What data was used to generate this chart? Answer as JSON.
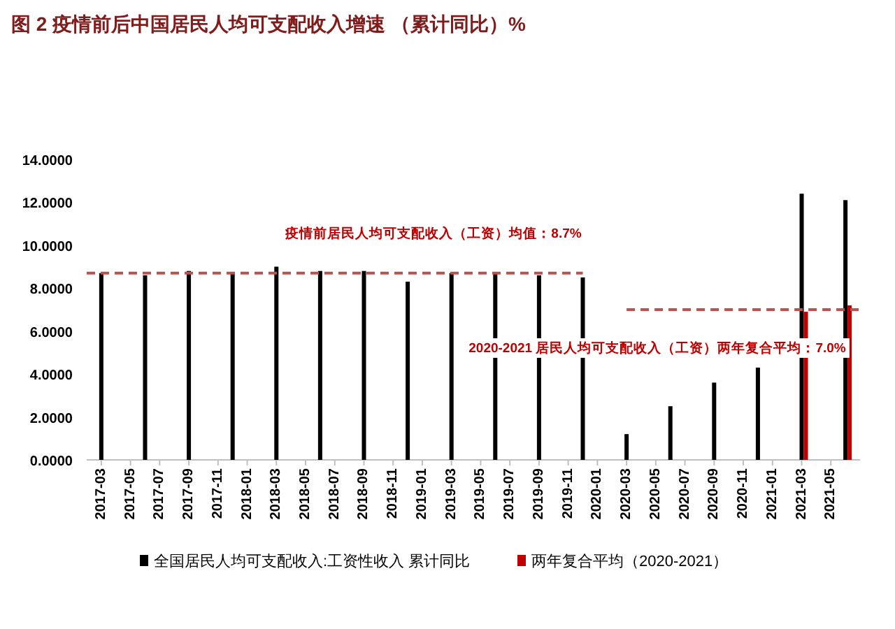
{
  "chart_data": {
    "type": "bar",
    "title": "图 2 疫情前后中国居民人均可支配收入增速 （累计同比）%",
    "xlim": [
      "2017-02",
      "2021-07"
    ],
    "xticks": [
      "2017-03",
      "2017-05",
      "2017-07",
      "2017-09",
      "2017-11",
      "2018-01",
      "2018-03",
      "2018-05",
      "2018-07",
      "2018-09",
      "2018-11",
      "2019-01",
      "2019-03",
      "2019-05",
      "2019-07",
      "2019-09",
      "2019-11",
      "2020-01",
      "2020-03",
      "2020-05",
      "2020-07",
      "2020-09",
      "2020-11",
      "2021-01",
      "2021-03",
      "2021-05"
    ],
    "ylim": [
      0,
      14
    ],
    "yticks": [
      {
        "value": 0,
        "label": "0.0000"
      },
      {
        "value": 2,
        "label": "2.0000"
      },
      {
        "value": 4,
        "label": "4.0000"
      },
      {
        "value": 6,
        "label": "6.0000"
      },
      {
        "value": 8,
        "label": "8.0000"
      },
      {
        "value": 10,
        "label": "10.0000"
      },
      {
        "value": 12,
        "label": "12.0000"
      },
      {
        "value": 14,
        "label": "14.0000"
      }
    ],
    "legend": "bottom",
    "series": [
      {
        "type": "bar",
        "name": "全国居民人均可支配收入:工资性收入 累计同比",
        "color": "#000000",
        "x": [
          "2017-03",
          "2017-06",
          "2017-09",
          "2017-12",
          "2018-03",
          "2018-06",
          "2018-09",
          "2018-12",
          "2019-03",
          "2019-06",
          "2019-09",
          "2019-12",
          "2020-03",
          "2020-06",
          "2020-09",
          "2020-12",
          "2021-03",
          "2021-06"
        ],
        "values": [
          8.7,
          8.6,
          8.8,
          8.7,
          9.0,
          8.8,
          8.8,
          8.3,
          8.7,
          8.7,
          8.6,
          8.5,
          1.2,
          2.5,
          3.6,
          4.3,
          12.4,
          12.1
        ]
      },
      {
        "type": "bar",
        "name": "两年复合平均（2020-2021）",
        "color": "#c00000",
        "x": [
          "2021-03",
          "2021-06"
        ],
        "values": [
          6.9,
          7.2
        ]
      },
      {
        "type": "line",
        "color": "#c0504d",
        "line_style": "dashed",
        "x": [
          "2017-02",
          "2019-12"
        ],
        "values": [
          8.7,
          8.7
        ]
      },
      {
        "type": "line",
        "color": "#c0504d",
        "line_style": "dashed",
        "x": [
          "2020-03",
          "2021-07"
        ],
        "values": [
          7.0,
          7.0
        ]
      }
    ],
    "annotations": [
      "疫情前居民人均可支配收入（工资）均值：8.7%",
      "2020-2021 居民人均可支配收入（工资）两年复合平均：7.0%"
    ]
  }
}
